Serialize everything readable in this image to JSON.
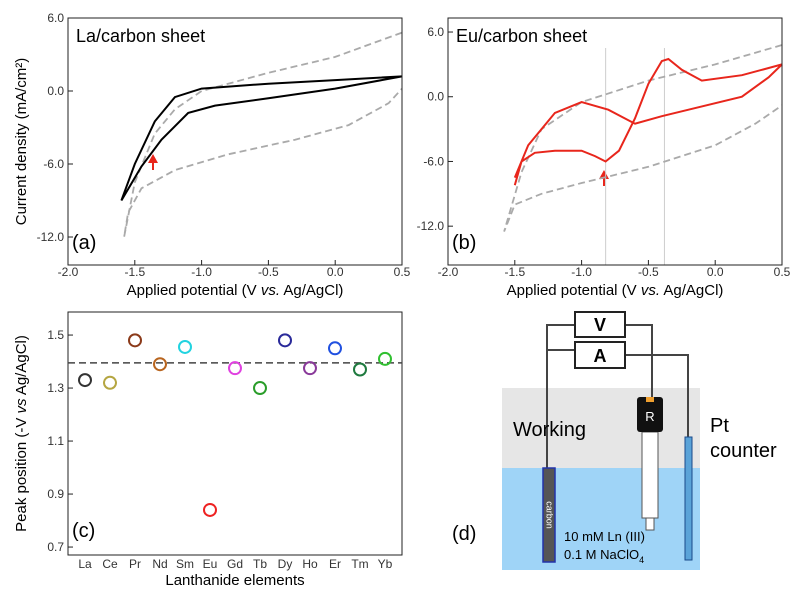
{
  "chart_data": [
    {
      "type": "line",
      "title": "La/carbon sheet",
      "panel_label": "(a)",
      "x_label": [
        "Applied potential (V ",
        "vs.",
        " Ag/AgCl)"
      ],
      "y_label": "Current density (mA/cm²)",
      "xlim": [
        -2.0,
        0.5
      ],
      "ylim": [
        -14.3,
        6.0
      ],
      "xticks": [
        {
          "value": -2.0,
          "label": "-2.0"
        },
        -1.5,
        {
          "value": -1.0,
          "label": "-1.0"
        },
        -0.5,
        {
          "value": 0.0,
          "label": "0.0"
        },
        0.5
      ],
      "yticks": [
        {
          "value": 6.0,
          "label": "6.0"
        },
        {
          "value": 0.0,
          "label": "0.0"
        },
        {
          "value": -6.0,
          "label": "-6.0"
        },
        {
          "value": -12.0,
          "label": "-12.0"
        }
      ],
      "series": [
        {
          "color": "#aaaaaa",
          "dashed": true,
          "x": [
            0.5,
            0.0,
            -0.5,
            -1.0,
            -1.2,
            -1.35,
            -1.5,
            -1.58,
            -1.55,
            -1.45,
            -1.2,
            -0.8,
            -0.3,
            0.1,
            0.4,
            0.5
          ],
          "y": [
            4.8,
            2.8,
            1.5,
            0.0,
            -1.5,
            -3.5,
            -7.5,
            -12.0,
            -10.0,
            -8.0,
            -6.5,
            -5.2,
            -4.0,
            -2.8,
            -1.0,
            0.2
          ]
        },
        {
          "color": "#000000",
          "dashed": false,
          "x": [
            0.5,
            0.0,
            -0.5,
            -1.0,
            -1.2,
            -1.35,
            -1.5,
            -1.6,
            -1.45,
            -1.3,
            -1.1,
            -0.9,
            -0.5,
            0.0,
            0.5
          ],
          "y": [
            1.2,
            0.9,
            0.6,
            0.2,
            -0.5,
            -2.5,
            -6.0,
            -9.0,
            -6.2,
            -4.0,
            -1.8,
            -1.2,
            -0.6,
            0.2,
            1.2
          ]
        }
      ]
    },
    {
      "type": "line",
      "title": "Eu/carbon sheet",
      "panel_label": "(b)",
      "x_label": [
        "Applied potential (V ",
        "vs.",
        " Ag/AgCl)"
      ],
      "xlim": [
        -2.0,
        0.5
      ],
      "ylim": [
        -15.6,
        7.3
      ],
      "xticks": [
        {
          "value": -2.0,
          "label": "-2.0"
        },
        -1.5,
        {
          "value": -1.0,
          "label": "-1.0"
        },
        -0.5,
        {
          "value": 0.0,
          "label": "0.0"
        },
        0.5
      ],
      "yticks": [
        {
          "value": 6.0,
          "label": "6.0"
        },
        {
          "value": 0.0,
          "label": "0.0"
        },
        {
          "value": -6.0,
          "label": "-6.0"
        },
        {
          "value": -12.0,
          "label": "-12.0"
        }
      ],
      "guide_x": [
        -0.82,
        -0.38
      ],
      "series": [
        {
          "color": "#aaaaaa",
          "dashed": true,
          "x": [
            0.5,
            0.0,
            -0.5,
            -1.0,
            -1.3,
            -1.45,
            -1.58,
            -1.5,
            -1.3,
            -1.0,
            -0.5,
            0.0,
            0.3,
            0.5
          ],
          "y": [
            4.8,
            3.0,
            1.5,
            -0.5,
            -3.0,
            -7.0,
            -12.5,
            -10.0,
            -9.0,
            -8.0,
            -6.5,
            -4.5,
            -2.5,
            -0.8
          ]
        },
        {
          "color": "#e8261c",
          "dashed": false,
          "x": [
            -1.5,
            -1.45,
            -1.35,
            -1.2,
            -1.0,
            -0.9,
            -0.82,
            -0.72,
            -0.6,
            -0.5,
            -0.4,
            -0.35,
            -0.25,
            -0.1,
            0.2,
            0.5,
            0.4,
            0.2,
            -0.2,
            -0.4,
            -0.6,
            -0.8,
            -1.0,
            -1.2,
            -1.4,
            -1.5
          ],
          "y": [
            -8.2,
            -6.0,
            -5.2,
            -5.0,
            -5.0,
            -5.5,
            -6.0,
            -5.0,
            -2.0,
            1.2,
            3.3,
            3.5,
            2.5,
            1.5,
            2.0,
            3.0,
            1.8,
            0.0,
            -1.2,
            -1.8,
            -2.5,
            -1.2,
            -0.5,
            -1.5,
            -4.5,
            -7.5
          ]
        }
      ]
    },
    {
      "type": "scatter",
      "panel_label": "(c)",
      "x_label": "Lanthanide elements",
      "y_label": [
        "Peak position (-V ",
        "vs",
        " Ag/AgCl)"
      ],
      "categories": [
        "La",
        "Ce",
        "Pr",
        "Nd",
        "Sm",
        "Eu",
        "Gd",
        "Tb",
        "Dy",
        "Ho",
        "Er",
        "Tm",
        "Yb"
      ],
      "values": [
        1.33,
        1.32,
        1.48,
        1.39,
        1.455,
        0.84,
        1.375,
        1.3,
        1.48,
        1.375,
        1.45,
        1.37,
        1.41
      ],
      "colors": [
        "#333333",
        "#b5a642",
        "#8b3a1a",
        "#b8651f",
        "#22d3e0",
        "#ee2222",
        "#e040e0",
        "#2a9d2a",
        "#2a2a9a",
        "#8a3a9a",
        "#2050e0",
        "#1f7a3f",
        "#30c030"
      ],
      "reference_line": 1.395,
      "ylim": [
        0.67,
        1.587
      ],
      "yticks": [
        0.7,
        0.9,
        1.1,
        1.3,
        1.5
      ]
    }
  ],
  "diagram": {
    "meter_v": "V",
    "meter_a": "A",
    "working": "Working",
    "counter": [
      "Pt",
      "counter"
    ],
    "working_material": "carbon",
    "reference": "R",
    "solution": [
      "10 mM Ln (III)",
      "0.1 M NaClO",
      "4"
    ],
    "panel_label": "(d)"
  }
}
